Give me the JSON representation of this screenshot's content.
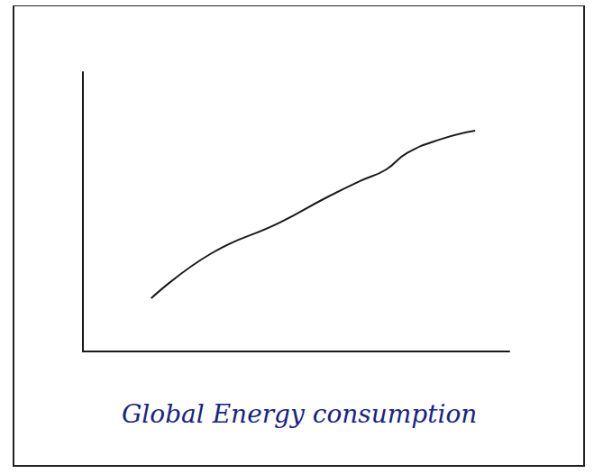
{
  "chart_data": {
    "type": "line",
    "title": "Global Energy consumption",
    "x": [
      1.6,
      3.0,
      4.6,
      5.7,
      6.5,
      7.1,
      7.6,
      8.4,
      9.2
    ],
    "values": [
      1.9,
      3.5,
      4.6,
      5.5,
      6.1,
      6.5,
      7.1,
      7.6,
      7.9
    ],
    "color": "#1a1a1a",
    "marker": "none",
    "xlim": [
      0,
      10
    ],
    "ylim": [
      0,
      10
    ],
    "grid": false,
    "tick_labels": false
  }
}
